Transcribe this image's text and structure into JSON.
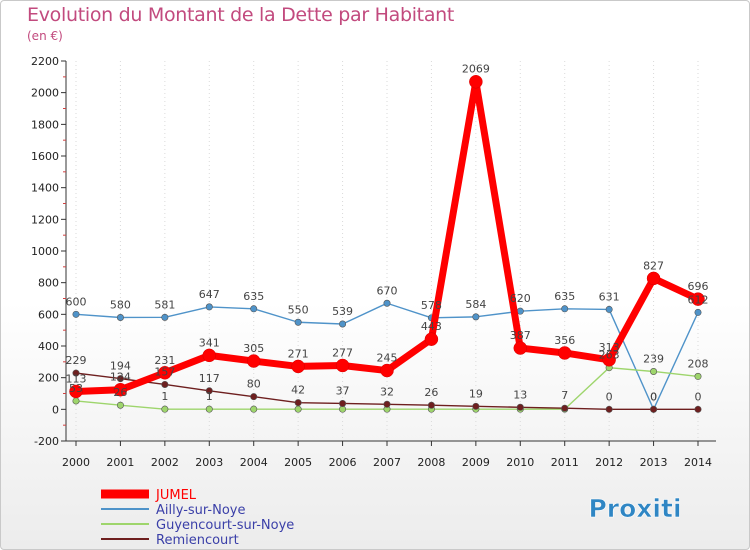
{
  "title": "Evolution du Montant de la Dette par Habitant",
  "subtitle": "(en €)",
  "logo_text": "Proxiti",
  "chart_data": {
    "type": "line",
    "title": "Evolution du Montant de la Dette par Habitant",
    "ylabel": "(en €)",
    "xlabel": "",
    "x": [
      2000,
      2001,
      2002,
      2003,
      2004,
      2005,
      2006,
      2007,
      2008,
      2009,
      2010,
      2011,
      2012,
      2013,
      2014
    ],
    "ylim": [
      -200,
      2200
    ],
    "yticks": [
      -200,
      0,
      200,
      400,
      600,
      800,
      1000,
      1200,
      1400,
      1600,
      1800,
      2000,
      2200
    ],
    "legend_position": "bottom-left",
    "series": [
      {
        "name": "Ailly-sur-Noye",
        "color": "#4f93c9",
        "values": [
          600,
          580,
          581,
          647,
          635,
          550,
          539,
          670,
          578,
          584,
          620,
          635,
          631,
          0,
          612
        ],
        "labels": [
          "600",
          "580",
          "581",
          "647",
          "635",
          "550",
          "539",
          "670",
          "578",
          "584",
          "620",
          "635",
          "631",
          "0",
          "612"
        ]
      },
      {
        "name": "Guyencourt-sur-Noye",
        "color": "#9ed56c",
        "values": [
          53,
          26,
          1,
          1,
          1,
          1,
          1,
          1,
          1,
          1,
          1,
          1,
          263,
          239,
          208
        ],
        "labels": [
          "53",
          "26",
          "1",
          "1",
          "",
          "",
          "",
          "",
          "",
          "",
          "",
          "",
          "263",
          "239",
          "208"
        ]
      },
      {
        "name": "Remiencourt",
        "color": "#6e1f1f",
        "values": [
          229,
          194,
          157,
          117,
          80,
          42,
          37,
          32,
          26,
          19,
          13,
          7,
          0,
          0,
          0
        ],
        "labels": [
          "229",
          "194",
          "157",
          "117",
          "80",
          "42",
          "37",
          "32",
          "26",
          "19",
          "13",
          "7",
          "0",
          "0",
          "0"
        ]
      },
      {
        "name": "JUMEL",
        "color": "#ff0000",
        "values": [
          113,
          124,
          231,
          341,
          305,
          271,
          277,
          245,
          443,
          2069,
          387,
          356,
          313,
          827,
          696
        ],
        "labels": [
          "113",
          "124",
          "231",
          "341",
          "305",
          "271",
          "277",
          "245",
          "443",
          "2069",
          "387",
          "356",
          "313",
          "827",
          "696"
        ]
      }
    ],
    "legend": [
      "JUMEL",
      "Ailly-sur-Noye",
      "Guyencourt-sur-Noye",
      "Remiencourt"
    ]
  }
}
